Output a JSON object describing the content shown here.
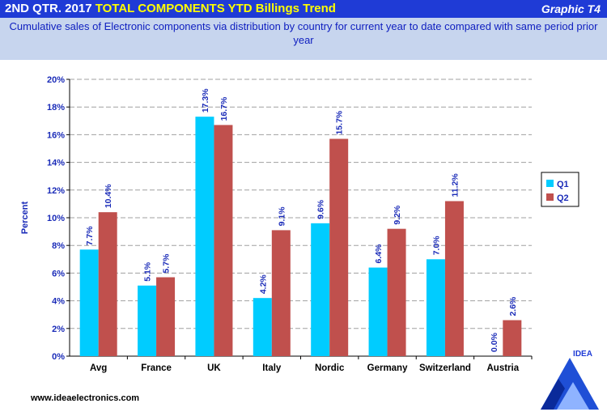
{
  "header": {
    "title_prefix": "2ND QTR. 2017",
    "title_highlight": "TOTAL COMPONENTS  YTD Billings Trend",
    "graphic_label": "Graphic T4",
    "subtitle": "Cumulative sales of  Electronic  components via distribution  by country for current year to date compared with same period prior year"
  },
  "footer": {
    "url": "www.ideaelectronics.com"
  },
  "logo": {
    "text": "IDEA"
  },
  "colors": {
    "q1": "#00ccff",
    "q2": "#c0504d",
    "axis_text": "#1a2bb8",
    "header_bg": "#1f3bd6",
    "subtitle_bg": "#c7d5ee"
  },
  "chart_data": {
    "type": "bar",
    "title": "",
    "xlabel": "",
    "ylabel": "Percent",
    "ylim": [
      0,
      20
    ],
    "yticks": [
      "0%",
      "2%",
      "4%",
      "6%",
      "8%",
      "10%",
      "12%",
      "14%",
      "16%",
      "18%",
      "20%"
    ],
    "categories": [
      "Avg",
      "France",
      "UK",
      "Italy",
      "Nordic",
      "Germany",
      "Switzerland",
      "Austria"
    ],
    "series": [
      {
        "name": "Q1",
        "values": [
          7.7,
          5.1,
          17.3,
          4.2,
          9.6,
          6.4,
          7.0,
          0.0
        ],
        "labels": [
          "7.7%",
          "5.1%",
          "17.3%",
          "4.2%",
          "9.6%",
          "6.4%",
          "7.0%",
          "0.0%"
        ]
      },
      {
        "name": "Q2",
        "values": [
          10.4,
          5.7,
          16.7,
          9.1,
          15.7,
          9.2,
          11.2,
          2.6
        ],
        "labels": [
          "10.4%",
          "5.7%",
          "16.7%",
          "9.1%",
          "15.7%",
          "9.2%",
          "11.2%",
          "2.6%"
        ]
      }
    ],
    "legend": "right",
    "grid": true
  }
}
